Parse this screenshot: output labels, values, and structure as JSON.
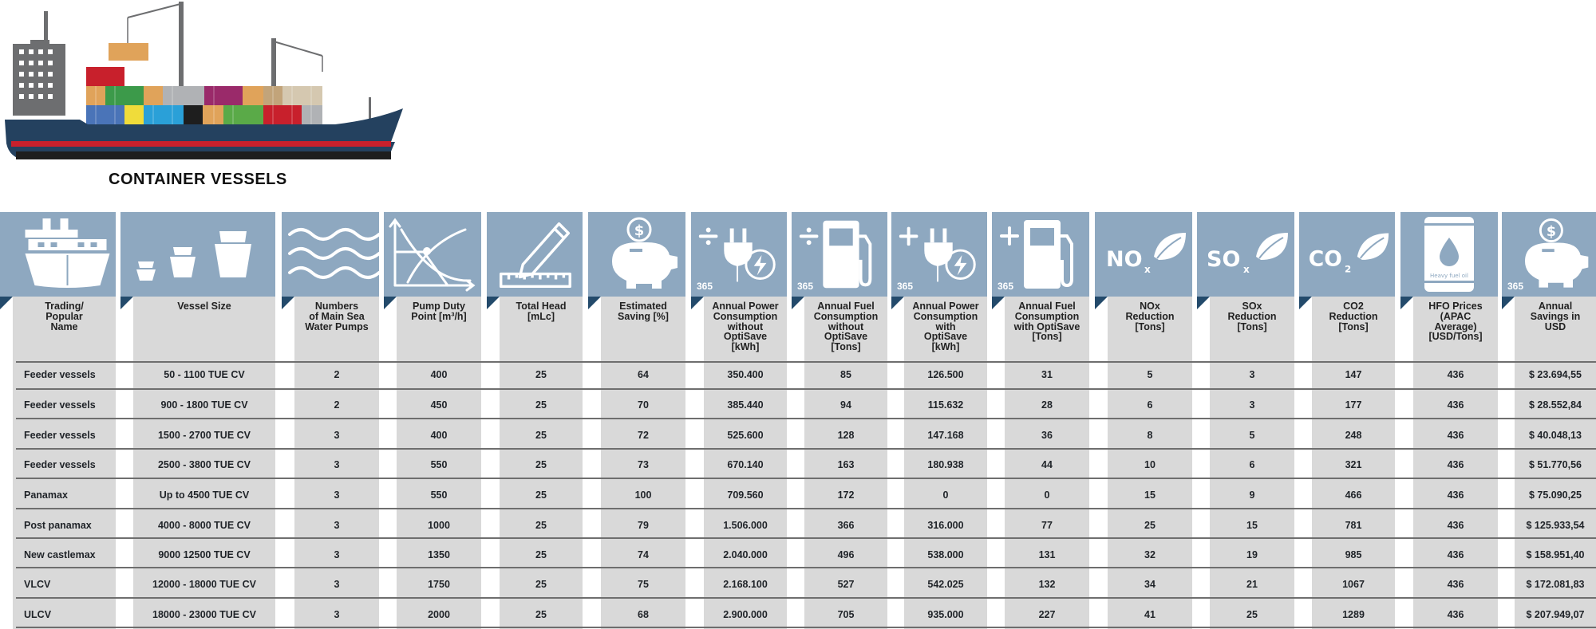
{
  "title": "CONTAINER VESSELS",
  "colors": {
    "header_blue": "#8ea8c0",
    "body_grey": "#d9d9d9",
    "hull": "#24415f",
    "stripe": "#c8202c",
    "corner": "#234a6b"
  },
  "icon_badge": "365",
  "hfo_can_label": "Heavy fuel oil",
  "columns": [
    {
      "icon": "ship-front-icon",
      "label": [
        "Trading/",
        "Popular",
        "Name"
      ],
      "badge": false
    },
    {
      "icon": "vessel-sizes-icon",
      "label": [
        "Vessel Size"
      ],
      "badge": false
    },
    {
      "icon": "sea-waves-icon",
      "label": [
        "Numbers",
        "of Main Sea",
        "Water Pumps"
      ],
      "badge": false
    },
    {
      "icon": "pump-curve-icon",
      "label": [
        "Pump Duty",
        "Point [m³/h]"
      ],
      "badge": false
    },
    {
      "icon": "pencil-ruler-icon",
      "label": [
        "Total Head",
        "[mLc]"
      ],
      "badge": false
    },
    {
      "icon": "piggy-bank-icon",
      "label": [
        "Estimated",
        "Saving [%]"
      ],
      "badge": false
    },
    {
      "icon": "power-plug-divide-icon",
      "label": [
        "Annual Power",
        "Consumption",
        "without",
        "OptiSave",
        "[kWh]"
      ],
      "badge": true
    },
    {
      "icon": "fuel-pump-divide-icon",
      "label": [
        "Annual Fuel",
        "Consumption",
        "without",
        "OptiSave",
        "[Tons]"
      ],
      "badge": true
    },
    {
      "icon": "power-plug-plus-icon",
      "label": [
        "Annual Power",
        "Consumption",
        "with",
        "OptiSave",
        "[kWh]"
      ],
      "badge": true
    },
    {
      "icon": "fuel-pump-plus-icon",
      "label": [
        "Annual Fuel",
        "Consumption",
        "with OptiSave",
        "[Tons]"
      ],
      "badge": true
    },
    {
      "icon": "nox-leaf-icon",
      "label": [
        "NOx",
        "Reduction",
        "[Tons]"
      ],
      "badge": false
    },
    {
      "icon": "sox-leaf-icon",
      "label": [
        "SOx",
        "Reduction",
        "[Tons]"
      ],
      "badge": false
    },
    {
      "icon": "co2-leaf-icon",
      "label": [
        "CO2",
        "Reduction",
        "[Tons]"
      ],
      "badge": false
    },
    {
      "icon": "oil-barrel-icon",
      "label": [
        "HFO Prices",
        "(APAC",
        "Average)",
        "[USD/Tons]"
      ],
      "badge": false
    },
    {
      "icon": "piggy-bank-icon",
      "label": [
        "Annual",
        "Savings in",
        "USD"
      ],
      "badge": true
    }
  ],
  "rows": [
    [
      "Feeder vessels",
      "50 - 1100 TUE CV",
      "2",
      "400",
      "25",
      "64",
      "350.400",
      "85",
      "126.500",
      "31",
      "5",
      "3",
      "147",
      "436",
      "$ 23.694,55"
    ],
    [
      "Feeder vessels",
      "900 - 1800 TUE CV",
      "2",
      "450",
      "25",
      "70",
      "385.440",
      "94",
      "115.632",
      "28",
      "6",
      "3",
      "177",
      "436",
      "$ 28.552,84"
    ],
    [
      "Feeder vessels",
      "1500 - 2700 TUE CV",
      "3",
      "400",
      "25",
      "72",
      "525.600",
      "128",
      "147.168",
      "36",
      "8",
      "5",
      "248",
      "436",
      "$ 40.048,13"
    ],
    [
      "Feeder vessels",
      "2500 - 3800 TUE CV",
      "3",
      "550",
      "25",
      "73",
      "670.140",
      "163",
      "180.938",
      "44",
      "10",
      "6",
      "321",
      "436",
      "$ 51.770,56"
    ],
    [
      "Panamax",
      "Up to 4500 TUE CV",
      "3",
      "550",
      "25",
      "100",
      "709.560",
      "172",
      "0",
      "0",
      "15",
      "9",
      "466",
      "436",
      "$ 75.090,25"
    ],
    [
      "Post panamax",
      "4000 - 8000 TUE CV",
      "3",
      "1000",
      "25",
      "79",
      "1.506.000",
      "366",
      "316.000",
      "77",
      "25",
      "15",
      "781",
      "436",
      "$ 125.933,54"
    ],
    [
      "New castlemax",
      "9000 12500 TUE CV",
      "3",
      "1350",
      "25",
      "74",
      "2.040.000",
      "496",
      "538.000",
      "131",
      "32",
      "19",
      "985",
      "436",
      "$ 158.951,40"
    ],
    [
      "VLCV",
      "12000 - 18000 TUE CV",
      "3",
      "1750",
      "25",
      "75",
      "2.168.100",
      "527",
      "542.025",
      "132",
      "34",
      "21",
      "1067",
      "436",
      "$ 172.081,83"
    ],
    [
      "ULCV",
      "18000 - 23000 TUE CV",
      "3",
      "2000",
      "25",
      "68",
      "2.900.000",
      "705",
      "935.000",
      "227",
      "41",
      "25",
      "1289",
      "436",
      "$ 207.949,07"
    ]
  ]
}
